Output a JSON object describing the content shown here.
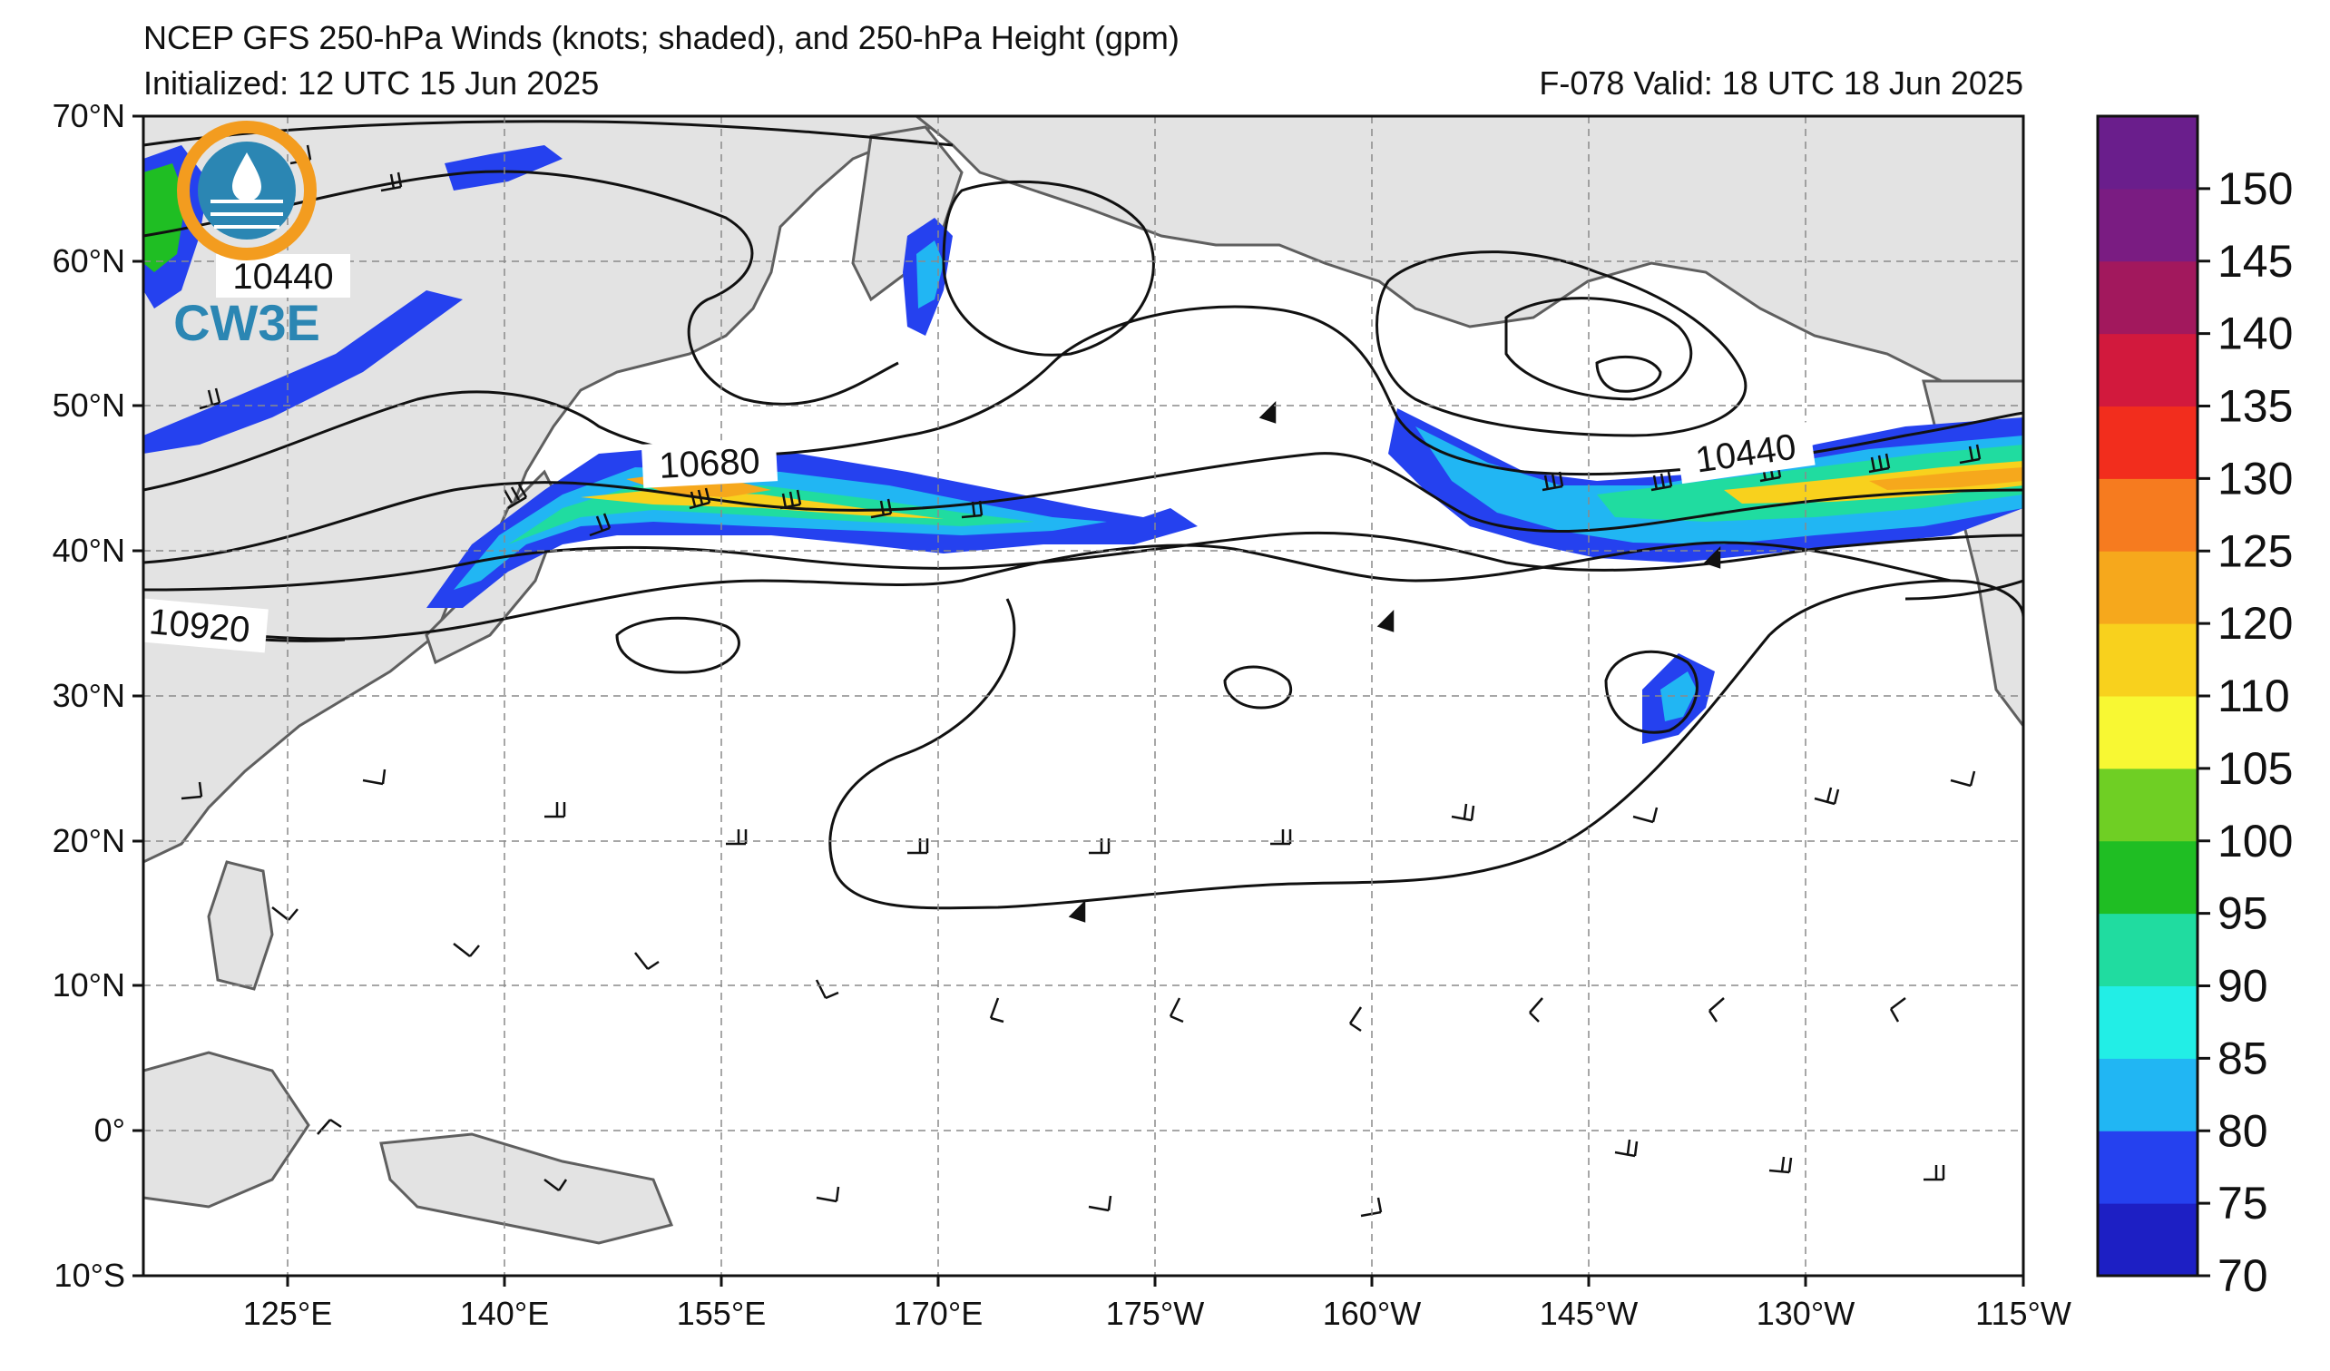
{
  "header": {
    "title_line1": "NCEP GFS 250-hPa Winds (knots; shaded), and 250-hPa Height (gpm)",
    "title_line2": "Initialized: 12 UTC 15 Jun 2025",
    "valid_line": "F-078  Valid: 18 UTC 18 Jun 2025"
  },
  "logo": {
    "text": "CW3E",
    "colors": {
      "ring": "#f39c1f",
      "body": "#2b86b3"
    }
  },
  "axes": {
    "lat_labels": [
      "70°N",
      "60°N",
      "50°N",
      "40°N",
      "30°N",
      "20°N",
      "10°N",
      "0°",
      "10°S"
    ],
    "lon_labels": [
      "125°E",
      "140°E",
      "155°E",
      "170°E",
      "175°W",
      "160°W",
      "145°W",
      "130°W",
      "115°W"
    ]
  },
  "contour_labels": [
    "10440",
    "10680",
    "10440",
    "10920"
  ],
  "colorbar": {
    "ticks": [
      "70",
      "75",
      "80",
      "85",
      "90",
      "95",
      "100",
      "105",
      "110",
      "120",
      "125",
      "130",
      "135",
      "140",
      "145",
      "150"
    ],
    "colors": [
      "#1d1fc4",
      "#2541ef",
      "#21b6f3",
      "#22eee6",
      "#20dca0",
      "#1fbe23",
      "#6fcf24",
      "#f8f833",
      "#f8d11d",
      "#f6a81c",
      "#f67b1f",
      "#f22d1d",
      "#d2193d",
      "#a2185d",
      "#7a1c82",
      "#6a1e8c"
    ]
  },
  "theme": {
    "land": "#e3e3e3",
    "ocean": "#ffffff",
    "coast": "#5f5f5f",
    "grid": "#8a8a8a"
  }
}
